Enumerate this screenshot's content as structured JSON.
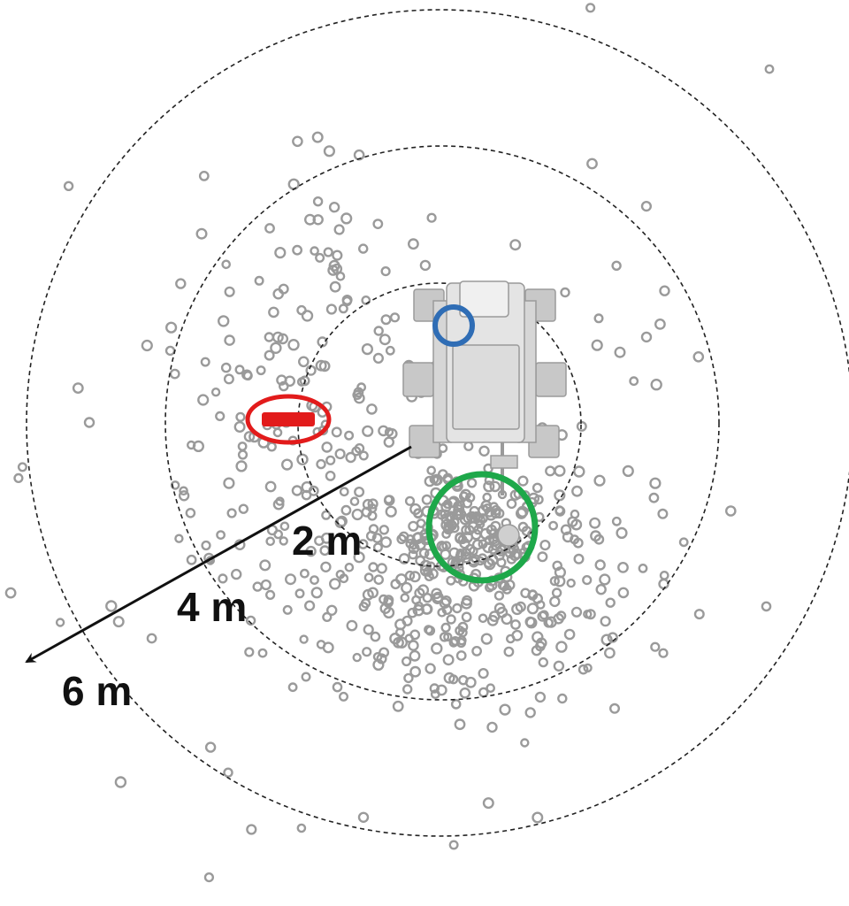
{
  "rings": [
    {
      "label": "2 m"
    },
    {
      "label": "4 m"
    },
    {
      "label": "6 m"
    }
  ]
}
